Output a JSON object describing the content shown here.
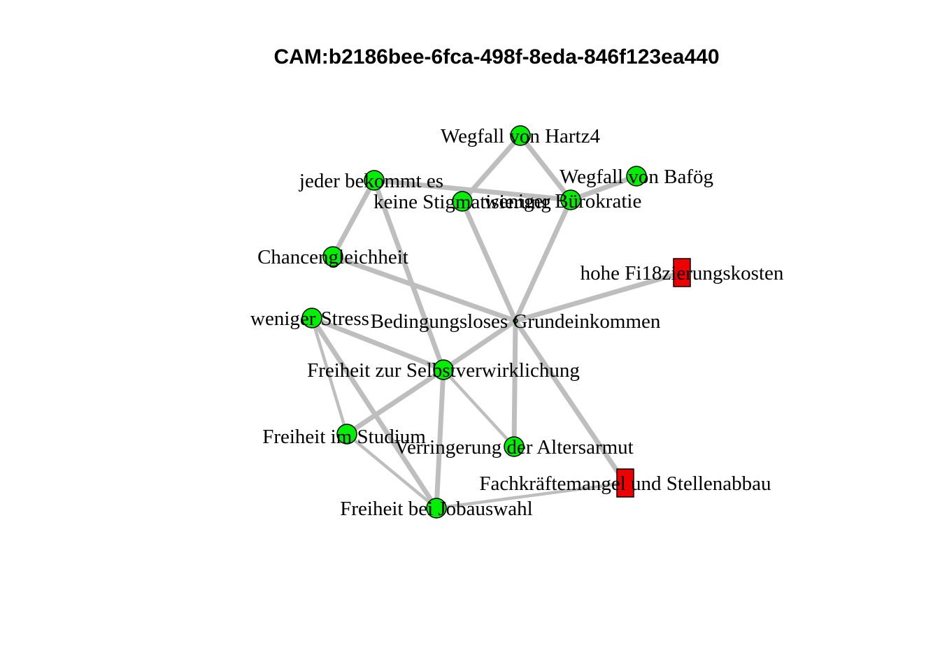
{
  "title": "CAM:b2186bee-6fca-498f-8eda-846f123ea440",
  "colors": {
    "positive": "#00ee00",
    "negative": "#ee0000",
    "edge": "#bebebe"
  },
  "nodes": [
    {
      "id": "bge",
      "label": "Bedingungsloses Grundeinkommen",
      "shape": "circle",
      "valence": "positive",
      "size": "small"
    },
    {
      "id": "hartz",
      "label": "Wegfall von Hartz4",
      "shape": "circle",
      "valence": "positive"
    },
    {
      "id": "bafoeg",
      "label": "Wegfall von Bafög",
      "shape": "circle",
      "valence": "positive"
    },
    {
      "id": "jeder",
      "label": "jeder bekommt es",
      "shape": "circle",
      "valence": "positive"
    },
    {
      "id": "stigma",
      "label": "keine Stigmatisierung",
      "shape": "circle",
      "valence": "positive"
    },
    {
      "id": "buerokratie",
      "label": "weniger Bürokratie",
      "shape": "circle",
      "valence": "positive"
    },
    {
      "id": "chancen",
      "label": "Chancengleichheit",
      "shape": "circle",
      "valence": "positive"
    },
    {
      "id": "kosten",
      "label": "hohe Fi18zierungskosten",
      "shape": "rect",
      "valence": "negative"
    },
    {
      "id": "stress",
      "label": "weniger Stress",
      "shape": "circle",
      "valence": "positive"
    },
    {
      "id": "selbst",
      "label": "Freiheit zur Selbstverwirklichung",
      "shape": "circle",
      "valence": "positive"
    },
    {
      "id": "studium",
      "label": "Freiheit im Studium",
      "shape": "circle",
      "valence": "positive"
    },
    {
      "id": "alter",
      "label": "Verringerung der Altersarmut",
      "shape": "circle",
      "valence": "positive"
    },
    {
      "id": "fachkraefte",
      "label": "Fachkräftemangel und Stellenabbau",
      "shape": "rect",
      "valence": "negative"
    },
    {
      "id": "job",
      "label": "Freiheit bei Jobauswahl",
      "shape": "circle",
      "valence": "positive"
    }
  ],
  "edges": [
    {
      "from": "bge",
      "to": "stigma",
      "weight": 3
    },
    {
      "from": "bge",
      "to": "buerokratie",
      "weight": 3
    },
    {
      "from": "bge",
      "to": "chancen",
      "weight": 3
    },
    {
      "from": "bge",
      "to": "kosten",
      "weight": 3
    },
    {
      "from": "bge",
      "to": "selbst",
      "weight": 3
    },
    {
      "from": "bge",
      "to": "alter",
      "weight": 3
    },
    {
      "from": "bge",
      "to": "fachkraefte",
      "weight": 3
    },
    {
      "from": "stigma",
      "to": "hartz",
      "weight": 3
    },
    {
      "from": "hartz",
      "to": "buerokratie",
      "weight": 3
    },
    {
      "from": "buerokratie",
      "to": "bafoeg",
      "weight": 3
    },
    {
      "from": "jeder",
      "to": "buerokratie",
      "weight": 3
    },
    {
      "from": "jeder",
      "to": "chancen",
      "weight": 3
    },
    {
      "from": "jeder",
      "to": "selbst",
      "weight": 3
    },
    {
      "from": "stress",
      "to": "selbst",
      "weight": 3
    },
    {
      "from": "stress",
      "to": "job",
      "weight": 3
    },
    {
      "from": "stress",
      "to": "studium",
      "weight": 2
    },
    {
      "from": "selbst",
      "to": "studium",
      "weight": 3
    },
    {
      "from": "selbst",
      "to": "job",
      "weight": 3
    },
    {
      "from": "selbst",
      "to": "alter",
      "weight": 2
    },
    {
      "from": "studium",
      "to": "job",
      "weight": 2
    },
    {
      "from": "job",
      "to": "fachkraefte",
      "weight": 2
    }
  ]
}
